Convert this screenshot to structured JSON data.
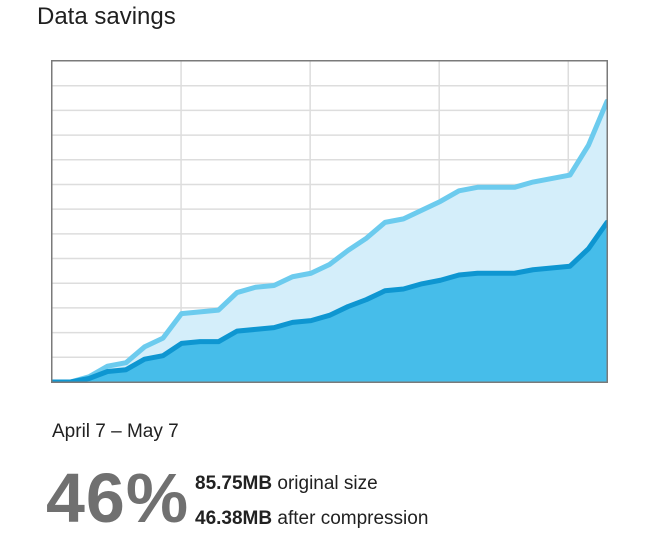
{
  "header": {
    "title": "Data savings"
  },
  "summary": {
    "date_range": "April 7 – May 7",
    "percent": "46%",
    "original_value": "85.75MB",
    "original_label": "original size",
    "compressed_value": "46.38MB",
    "compressed_label": "after compression"
  },
  "colors": {
    "original_line": "#6ccbee",
    "original_fill": "#d4eefa",
    "compressed_line": "#0e96d1",
    "compressed_fill": "#46bdea",
    "grid": "#dddddd",
    "border": "#7a7a7a"
  },
  "chart_data": {
    "type": "area",
    "x": [
      0,
      1,
      2,
      3,
      4,
      5,
      6,
      7,
      8,
      9,
      10,
      11,
      12,
      13,
      14,
      15,
      16,
      17,
      18,
      19,
      20,
      21,
      22,
      23,
      24,
      25,
      26,
      27,
      28,
      29,
      30
    ],
    "series": [
      {
        "values": [
          0,
          0,
          1.5,
          4.5,
          5.5,
          10,
          12.5,
          19.5,
          20,
          20.5,
          25.5,
          27,
          27.5,
          30,
          31,
          33.5,
          37.5,
          41,
          45.5,
          46.5,
          49,
          51.5,
          54.5,
          55.5,
          55.5,
          55.5,
          57,
          58,
          59,
          67.5,
          80
        ]
      },
      {
        "values": [
          0,
          0,
          1,
          3,
          3.5,
          6.5,
          7.5,
          11,
          11.5,
          11.5,
          14.5,
          15,
          15.5,
          17,
          17.5,
          19,
          21.5,
          23.5,
          26,
          26.5,
          28,
          29,
          30.5,
          31,
          31,
          31,
          32,
          32.5,
          33,
          38,
          45.5
        ]
      }
    ],
    "ylim": [
      0,
      91.5
    ],
    "grid": true,
    "vertical_gridlines": 4,
    "horizontal_gridlines": 13
  }
}
